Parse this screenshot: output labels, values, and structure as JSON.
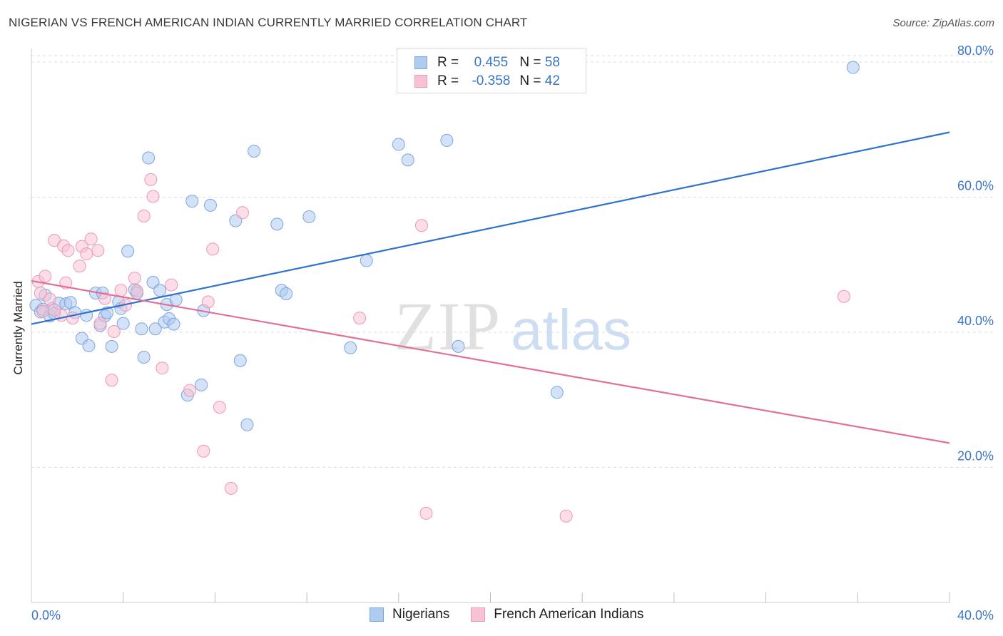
{
  "header": {
    "title": "NIGERIAN VS FRENCH AMERICAN INDIAN CURRENTLY MARRIED CORRELATION CHART",
    "source": "Source: ZipAtlas.com"
  },
  "legend": {
    "rows": [
      {
        "r_label": "R =",
        "r_value": "0.455",
        "n_label": "N =",
        "n_value": "58"
      },
      {
        "r_label": "R =",
        "r_value": "-0.358",
        "n_label": "N =",
        "n_value": "42"
      }
    ]
  },
  "watermark": {
    "zip": "ZIP",
    "atlas": "atlas"
  },
  "colors": {
    "blue_fill": "#aecbf0",
    "blue_stroke": "#7aa6de",
    "blue_line": "#2f72cc",
    "pink_fill": "#f7c3d4",
    "pink_stroke": "#ee97b3",
    "pink_line": "#e0709a",
    "tick_label": "#3a76c8",
    "grid": "#dddddd"
  },
  "chart_data": {
    "type": "scatter",
    "title": "NIGERIAN VS FRENCH AMERICAN INDIAN CURRENTLY MARRIED CORRELATION CHART",
    "xlabel": "",
    "ylabel": "Currently Married",
    "xlim": [
      0,
      40
    ],
    "ylim": [
      0,
      82
    ],
    "x_tick_labels": [
      {
        "value": 0,
        "label": "0.0%"
      },
      {
        "value": 40,
        "label": "40.0%"
      }
    ],
    "y_tick_labels": [
      {
        "value": 20,
        "label": "20.0%"
      },
      {
        "value": 40,
        "label": "40.0%"
      },
      {
        "value": 60,
        "label": "60.0%"
      },
      {
        "value": 80,
        "label": "80.0%"
      }
    ],
    "grid": true,
    "legend_position": "top-center",
    "series": [
      {
        "name": "Nigerians",
        "color": "#aecbf0",
        "trend": {
          "x": [
            0,
            40
          ],
          "y": [
            41.2,
            69.6
          ]
        },
        "points": [
          [
            0.2,
            44.0
          ],
          [
            0.4,
            43.0
          ],
          [
            0.5,
            43.4
          ],
          [
            0.8,
            42.4
          ],
          [
            0.9,
            43.5
          ],
          [
            1.0,
            42.8
          ],
          [
            1.2,
            44.3
          ],
          [
            1.5,
            44.2
          ],
          [
            1.7,
            44.4
          ],
          [
            1.9,
            42.9
          ],
          [
            2.2,
            39.1
          ],
          [
            2.4,
            42.5
          ],
          [
            2.5,
            38.0
          ],
          [
            2.8,
            45.8
          ],
          [
            3.0,
            41.0
          ],
          [
            3.2,
            42.4
          ],
          [
            3.3,
            42.9
          ],
          [
            3.5,
            37.9
          ],
          [
            3.8,
            44.5
          ],
          [
            3.9,
            43.5
          ],
          [
            4.0,
            41.3
          ],
          [
            4.2,
            52.0
          ],
          [
            4.5,
            46.3
          ],
          [
            4.6,
            45.8
          ],
          [
            4.8,
            40.5
          ],
          [
            4.9,
            36.3
          ],
          [
            5.1,
            65.8
          ],
          [
            5.3,
            47.4
          ],
          [
            5.4,
            40.5
          ],
          [
            5.6,
            46.2
          ],
          [
            5.8,
            41.5
          ],
          [
            5.9,
            44.1
          ],
          [
            6.0,
            42.0
          ],
          [
            6.2,
            41.2
          ],
          [
            6.3,
            44.8
          ],
          [
            7.0,
            59.4
          ],
          [
            7.4,
            32.2
          ],
          [
            7.5,
            43.2
          ],
          [
            7.8,
            58.8
          ],
          [
            8.9,
            56.5
          ],
          [
            9.1,
            35.8
          ],
          [
            9.4,
            26.3
          ],
          [
            9.7,
            66.8
          ],
          [
            10.7,
            56.0
          ],
          [
            10.9,
            46.2
          ],
          [
            11.1,
            45.7
          ],
          [
            12.1,
            57.1
          ],
          [
            13.9,
            37.7
          ],
          [
            14.6,
            50.6
          ],
          [
            16.0,
            67.8
          ],
          [
            16.4,
            65.5
          ],
          [
            18.1,
            68.4
          ],
          [
            18.6,
            37.9
          ],
          [
            22.9,
            31.1
          ],
          [
            35.8,
            79.2
          ],
          [
            0.6,
            45.5
          ],
          [
            6.8,
            30.7
          ],
          [
            3.1,
            45.8
          ]
        ]
      },
      {
        "name": "French American Indians",
        "color": "#f7c3d4",
        "trend": {
          "x": [
            0,
            40
          ],
          "y": [
            47.6,
            23.6
          ]
        },
        "points": [
          [
            0.3,
            47.5
          ],
          [
            0.5,
            43.1
          ],
          [
            0.6,
            48.3
          ],
          [
            0.8,
            44.9
          ],
          [
            1.0,
            53.6
          ],
          [
            1.3,
            42.5
          ],
          [
            1.4,
            52.8
          ],
          [
            1.5,
            47.3
          ],
          [
            1.6,
            52.1
          ],
          [
            1.8,
            42.1
          ],
          [
            2.1,
            49.8
          ],
          [
            2.2,
            52.7
          ],
          [
            2.4,
            51.6
          ],
          [
            2.6,
            53.8
          ],
          [
            2.9,
            52.1
          ],
          [
            3.0,
            41.3
          ],
          [
            3.2,
            45.0
          ],
          [
            3.5,
            32.9
          ],
          [
            3.6,
            40.1
          ],
          [
            3.9,
            46.2
          ],
          [
            4.1,
            44.0
          ],
          [
            4.5,
            48.0
          ],
          [
            4.6,
            46.1
          ],
          [
            4.9,
            57.2
          ],
          [
            5.2,
            62.6
          ],
          [
            5.3,
            60.1
          ],
          [
            5.7,
            34.7
          ],
          [
            6.1,
            47.0
          ],
          [
            6.9,
            31.4
          ],
          [
            7.5,
            22.4
          ],
          [
            7.7,
            44.5
          ],
          [
            7.9,
            52.3
          ],
          [
            8.2,
            28.9
          ],
          [
            8.7,
            16.9
          ],
          [
            9.2,
            57.7
          ],
          [
            14.3,
            42.1
          ],
          [
            17.0,
            55.8
          ],
          [
            17.2,
            13.2
          ],
          [
            23.3,
            12.8
          ],
          [
            35.4,
            45.3
          ],
          [
            0.4,
            45.8
          ],
          [
            1.0,
            43.3
          ]
        ]
      }
    ]
  }
}
